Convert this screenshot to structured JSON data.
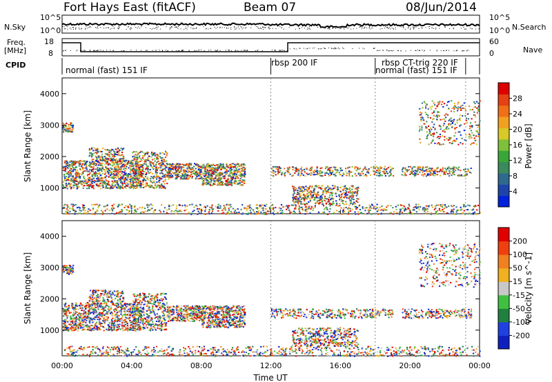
{
  "header": {
    "title_left": "Fort Hays East (fitACF)",
    "title_center": "Beam 07",
    "title_right": "08/Jun/2014"
  },
  "left_labels": {
    "nsky": "N.Sky",
    "freq": "Freq.",
    "freq_unit": "[MHz]",
    "cpid": "CPID"
  },
  "right_labels": {
    "nsearch": "N.Search",
    "nave": "Nave"
  },
  "noise_axis": {
    "left_ticks": [
      "10^5",
      "10^0"
    ],
    "right_ticks": [
      "10^5",
      "10^0"
    ]
  },
  "freq_axis": {
    "left_ticks": [
      "18",
      "8"
    ],
    "right_ticks": [
      "60",
      "0"
    ]
  },
  "cpid_modes": [
    {
      "label": "normal (fast) 151 IF",
      "start_hour": 0
    },
    {
      "label": "rbsp 200 IF",
      "start_hour": 12
    },
    {
      "label": "rbsp CT-trig 220 IF",
      "start_hour": 18
    },
    {
      "label": "normal (fast) 151 IF",
      "start_hour": 18
    }
  ],
  "chart_data": [
    {
      "type": "heatmap",
      "title": "",
      "ylabel": "Slant Range [km]",
      "xlabel": "",
      "ylim": [
        180,
        4500
      ],
      "xlim": [
        0,
        24
      ],
      "yticks": [
        "4000",
        "3000",
        "2000",
        "1000"
      ],
      "colorbar": {
        "label": "Power [dB]",
        "ticks": [
          "28",
          "24",
          "20",
          "16",
          "12",
          "8",
          "4"
        ],
        "colors": [
          "#0022dd",
          "#1e44aa",
          "#2f6a8e",
          "#3a8a5c",
          "#3aa63a",
          "#7ec03a",
          "#d8c828",
          "#f2a020",
          "#f07018",
          "#e64014",
          "#dd0000"
        ]
      }
    },
    {
      "type": "heatmap",
      "title": "",
      "ylabel": "Slant Range [km]",
      "xlabel": "Time UT",
      "ylim": [
        180,
        4500
      ],
      "xlim": [
        0,
        24
      ],
      "yticks": [
        "4000",
        "3000",
        "2000",
        "1000"
      ],
      "xticks": [
        "00:00",
        "04:00",
        "08:00",
        "12:00",
        "16:00",
        "20:00",
        "00:00"
      ],
      "colorbar": {
        "label": "Velocity [m s^-1]",
        "ticks": [
          "200",
          "100",
          "50",
          "15",
          "-15",
          "-50",
          "-100",
          "-200"
        ],
        "colors": [
          "#1020c0",
          "#2040e0",
          "#208040",
          "#40c040",
          "#c8c8c8",
          "#f0b020",
          "#f08020",
          "#f04010",
          "#e00000"
        ]
      }
    }
  ]
}
